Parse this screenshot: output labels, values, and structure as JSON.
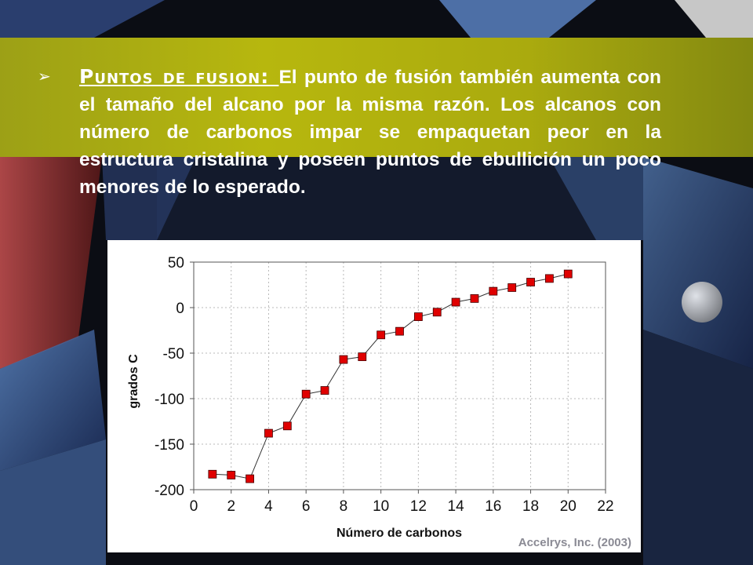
{
  "slide": {
    "bullet_icon": "arrow-right-bullet-icon",
    "heading": "Puntos de fusion: ",
    "body": "El punto de fusión también aumenta con el tamaño del alcano por la misma razón. Los alcanos con número de carbonos impar se empaquetan peor en la estructura cristalina y poseen puntos de ebullición un poco menores de lo esperado.",
    "credit": "Accelrys, Inc. (2003)",
    "colors": {
      "band": "#c6c60e",
      "marker": "#e00000",
      "text": "#ffffff"
    }
  },
  "chart_data": {
    "type": "line",
    "title": "",
    "xlabel": "Número de carbonos",
    "ylabel": "grados C",
    "xlim": [
      0,
      22
    ],
    "ylim": [
      -200,
      50
    ],
    "xticks": [
      0,
      2,
      4,
      6,
      8,
      10,
      12,
      14,
      16,
      18,
      20,
      22
    ],
    "yticks": [
      50,
      0,
      -50,
      -100,
      -150,
      -200
    ],
    "grid": true,
    "series": [
      {
        "marker": "square",
        "color": "#e00000",
        "x": [
          1,
          2,
          3,
          4,
          5,
          6,
          7,
          8,
          9,
          10,
          11,
          12,
          13,
          14,
          15,
          16,
          17,
          18,
          19,
          20
        ],
        "values": [
          -183,
          -184,
          -188,
          -138,
          -130,
          -95,
          -91,
          -57,
          -54,
          -30,
          -26,
          -10,
          -5,
          6,
          10,
          18,
          22,
          28,
          32,
          37
        ]
      }
    ]
  }
}
